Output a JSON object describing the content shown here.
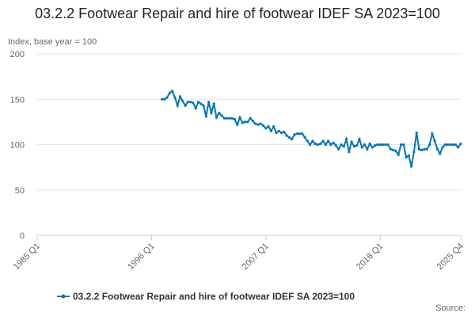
{
  "chart_data": {
    "type": "line",
    "title": "03.2.2 Footwear Repair and hire of footwear IDEF SA 2023=100",
    "y_label": "Index, base year = 100",
    "source": "Source:",
    "x": [
      1997,
      1997.25,
      1997.5,
      1997.75,
      1998,
      1998.25,
      1998.5,
      1998.75,
      1999,
      1999.25,
      1999.5,
      1999.75,
      2000,
      2000.25,
      2000.5,
      2000.75,
      2001,
      2001.25,
      2001.5,
      2001.75,
      2002,
      2002.25,
      2002.5,
      2002.75,
      2003,
      2003.25,
      2003.5,
      2003.75,
      2004,
      2004.25,
      2004.5,
      2004.75,
      2005,
      2005.25,
      2005.5,
      2005.75,
      2006,
      2006.25,
      2006.5,
      2006.75,
      2007,
      2007.25,
      2007.5,
      2007.75,
      2008,
      2008.25,
      2008.5,
      2008.75,
      2009,
      2009.25,
      2009.5,
      2009.75,
      2010,
      2010.25,
      2010.5,
      2010.75,
      2011,
      2011.25,
      2011.5,
      2011.75,
      2012,
      2012.25,
      2012.5,
      2012.75,
      2013,
      2013.25,
      2013.5,
      2013.75,
      2014,
      2014.25,
      2014.5,
      2014.75,
      2015,
      2015.25,
      2015.5,
      2015.75,
      2016,
      2016.25,
      2016.5,
      2016.75,
      2017,
      2017.25,
      2017.5,
      2017.75,
      2018,
      2018.25,
      2018.5,
      2018.75,
      2019,
      2019.25,
      2019.5,
      2019.75,
      2020,
      2020.25,
      2020.5,
      2020.75,
      2021,
      2021.25,
      2021.5,
      2021.75,
      2022,
      2022.25,
      2022.5,
      2022.75,
      2023,
      2023.25,
      2023.5,
      2023.75,
      2024,
      2024.25,
      2024.5,
      2024.75,
      2025,
      2025.25,
      2025.5,
      2025.75
    ],
    "series": [
      {
        "name": "03.2.2 Footwear Repair and hire of footwear IDEF SA 2023=100",
        "color": "#0075b8",
        "values": [
          150,
          150,
          152,
          157,
          159,
          152,
          143,
          153,
          148,
          143,
          147,
          147,
          146,
          140,
          147,
          145,
          143,
          131,
          147,
          135,
          145,
          130,
          135,
          132,
          129,
          129,
          129,
          129,
          128,
          122,
          130,
          124,
          125,
          125,
          129,
          126,
          123,
          122,
          123,
          121,
          118,
          120,
          115,
          120,
          113,
          115,
          113,
          114,
          110,
          108,
          106,
          111,
          112,
          112,
          112,
          108,
          104,
          100,
          104,
          101,
          100,
          101,
          104,
          100,
          104,
          100,
          102,
          99,
          95,
          100,
          98,
          106,
          92,
          103,
          98,
          99,
          106,
          97,
          100,
          95,
          101,
          97,
          99,
          100,
          100,
          100,
          100,
          100,
          95,
          94,
          93,
          89,
          100,
          100,
          86,
          88,
          76,
          92,
          113,
          95,
          94,
          95,
          95,
          100,
          112,
          104,
          95,
          90,
          97,
          100,
          100,
          100,
          100,
          100,
          97,
          101
        ]
      }
    ],
    "xlim": [
      1985,
      2025.75
    ],
    "xticks": [
      {
        "value": 1985,
        "label": "1985 Q1"
      },
      {
        "value": 1996,
        "label": "1996 Q1"
      },
      {
        "value": 2007,
        "label": "2007 Q1"
      },
      {
        "value": 2018,
        "label": "2018 Q1"
      },
      {
        "value": 2025.75,
        "label": "2025 Q4"
      }
    ],
    "ylim": [
      0,
      200
    ],
    "yticks": [
      0,
      50,
      100,
      150,
      200
    ],
    "grid": true,
    "legend": "bottom"
  }
}
